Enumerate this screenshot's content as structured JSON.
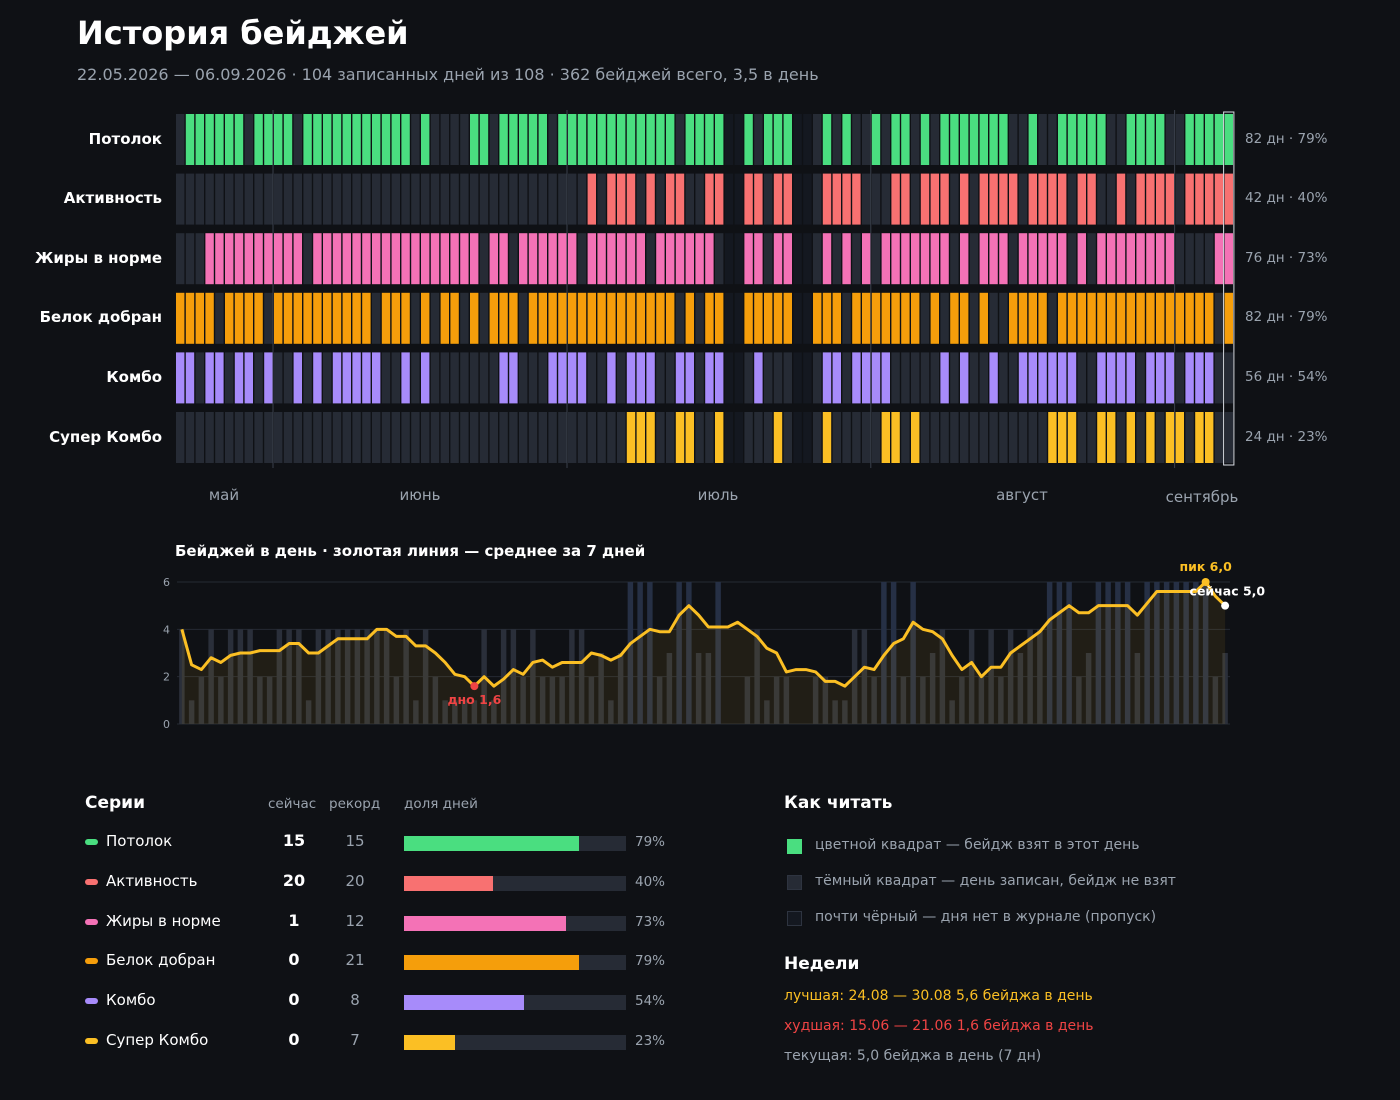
{
  "header": {
    "title": "История бейджей",
    "subtitle": "22.05.2026 — 06.09.2026 · 104 записанных дней из 108 · 362 бейджей всего, 3,5 в день"
  },
  "colors": {
    "background": "#0f1115",
    "empty_cell": "#262b35",
    "missing_cell": "#141820",
    "gold": "#fbbf24",
    "red": "#ef4444"
  },
  "heatmap": {
    "month_labels": [
      "май",
      "июнь",
      "июль",
      "август",
      "сентябрь"
    ],
    "rows": [
      {
        "name": "Потолок",
        "stat": "82 дн · 79%",
        "color": "#4ade80"
      },
      {
        "name": "Активность",
        "stat": "42 дн · 40%",
        "color": "#f87171"
      },
      {
        "name": "Жиры в норме",
        "stat": "76 дн · 73%",
        "color": "#f472b6"
      },
      {
        "name": "Белок добран",
        "stat": "82 дн · 79%",
        "color": "#f59e0b"
      },
      {
        "name": "Комбо",
        "stat": "56 дн · 54%",
        "color": "#a78bfa"
      },
      {
        "name": "Супер Комбо",
        "stat": "24 дн · 23%",
        "color": "#fbbf24"
      }
    ]
  },
  "chart_data": {
    "type": "bar",
    "title": "Бейджей в день · золотая линия — среднее за 7 дней",
    "x_start": "2026-05-22",
    "x_end": "2026-09-06",
    "ylim": [
      0,
      6
    ],
    "y_ticks": [
      0,
      2,
      4,
      6
    ],
    "grid": true,
    "missing_days": [
      "2026-07-17",
      "2026-07-18",
      "2026-07-24",
      "2026-07-25"
    ],
    "days": [
      {
        "date": "2026-05-22",
        "value": 4,
        "avg": 4.0
      },
      {
        "date": "2026-05-23",
        "value": 1,
        "avg": 2.5
      },
      {
        "date": "2026-05-24",
        "value": 2,
        "avg": 2.3
      },
      {
        "date": "2026-05-25",
        "value": 4,
        "avg": 2.8
      },
      {
        "date": "2026-05-26",
        "value": 2,
        "avg": 2.6
      },
      {
        "date": "2026-05-27",
        "value": 4,
        "avg": 2.9
      },
      {
        "date": "2026-05-28",
        "value": 4,
        "avg": 3.0
      },
      {
        "date": "2026-05-29",
        "value": 4,
        "avg": 3.0
      },
      {
        "date": "2026-05-30",
        "value": 2,
        "avg": 3.1
      },
      {
        "date": "2026-05-31",
        "value": 2,
        "avg": 3.1
      },
      {
        "date": "2026-06-01",
        "value": 4,
        "avg": 3.1
      },
      {
        "date": "2026-06-02",
        "value": 4,
        "avg": 3.4
      },
      {
        "date": "2026-06-03",
        "value": 4,
        "avg": 3.4
      },
      {
        "date": "2026-06-04",
        "value": 1,
        "avg": 3.0
      },
      {
        "date": "2026-06-05",
        "value": 4,
        "avg": 3.0
      },
      {
        "date": "2026-06-06",
        "value": 4,
        "avg": 3.3
      },
      {
        "date": "2026-06-07",
        "value": 4,
        "avg": 3.6
      },
      {
        "date": "2026-06-08",
        "value": 4,
        "avg": 3.6
      },
      {
        "date": "2026-06-09",
        "value": 4,
        "avg": 3.6
      },
      {
        "date": "2026-06-10",
        "value": 4,
        "avg": 3.6
      },
      {
        "date": "2026-06-11",
        "value": 4,
        "avg": 4.0
      },
      {
        "date": "2026-06-12",
        "value": 4,
        "avg": 4.0
      },
      {
        "date": "2026-06-13",
        "value": 2,
        "avg": 3.7
      },
      {
        "date": "2026-06-14",
        "value": 4,
        "avg": 3.7
      },
      {
        "date": "2026-06-15",
        "value": 1,
        "avg": 3.3
      },
      {
        "date": "2026-06-16",
        "value": 4,
        "avg": 3.3
      },
      {
        "date": "2026-06-17",
        "value": 2,
        "avg": 3.0
      },
      {
        "date": "2026-06-18",
        "value": 1,
        "avg": 2.6
      },
      {
        "date": "2026-06-19",
        "value": 1,
        "avg": 2.1
      },
      {
        "date": "2026-06-20",
        "value": 1,
        "avg": 2.0
      },
      {
        "date": "2026-06-21",
        "value": 1,
        "avg": 1.6
      },
      {
        "date": "2026-06-22",
        "value": 4,
        "avg": 2.0
      },
      {
        "date": "2026-06-23",
        "value": 1,
        "avg": 1.6
      },
      {
        "date": "2026-06-24",
        "value": 4,
        "avg": 1.9
      },
      {
        "date": "2026-06-25",
        "value": 4,
        "avg": 2.3
      },
      {
        "date": "2026-06-26",
        "value": 2,
        "avg": 2.1
      },
      {
        "date": "2026-06-27",
        "value": 4,
        "avg": 2.6
      },
      {
        "date": "2026-06-28",
        "value": 2,
        "avg": 2.7
      },
      {
        "date": "2026-06-29",
        "value": 2,
        "avg": 2.4
      },
      {
        "date": "2026-06-30",
        "value": 2,
        "avg": 2.6
      },
      {
        "date": "2026-07-01",
        "value": 4,
        "avg": 2.6
      },
      {
        "date": "2026-07-02",
        "value": 4,
        "avg": 2.6
      },
      {
        "date": "2026-07-03",
        "value": 2,
        "avg": 3.0
      },
      {
        "date": "2026-07-04",
        "value": 3,
        "avg": 2.9
      },
      {
        "date": "2026-07-05",
        "value": 1,
        "avg": 2.7
      },
      {
        "date": "2026-07-06",
        "value": 3,
        "avg": 2.9
      },
      {
        "date": "2026-07-07",
        "value": 6,
        "avg": 3.4
      },
      {
        "date": "2026-07-08",
        "value": 6,
        "avg": 3.7
      },
      {
        "date": "2026-07-09",
        "value": 6,
        "avg": 4.0
      },
      {
        "date": "2026-07-10",
        "value": 2,
        "avg": 3.9
      },
      {
        "date": "2026-07-11",
        "value": 3,
        "avg": 3.9
      },
      {
        "date": "2026-07-12",
        "value": 6,
        "avg": 4.6
      },
      {
        "date": "2026-07-13",
        "value": 6,
        "avg": 5.0
      },
      {
        "date": "2026-07-14",
        "value": 3,
        "avg": 4.6
      },
      {
        "date": "2026-07-15",
        "value": 3,
        "avg": 4.1
      },
      {
        "date": "2026-07-16",
        "value": 6,
        "avg": 4.1
      },
      {
        "date": "2026-07-17",
        "value": 0,
        "avg": 4.1
      },
      {
        "date": "2026-07-18",
        "value": 0,
        "avg": 4.3
      },
      {
        "date": "2026-07-19",
        "value": 2,
        "avg": 4.0
      },
      {
        "date": "2026-07-20",
        "value": 4,
        "avg": 3.7
      },
      {
        "date": "2026-07-21",
        "value": 1,
        "avg": 3.2
      },
      {
        "date": "2026-07-22",
        "value": 2,
        "avg": 3.0
      },
      {
        "date": "2026-07-23",
        "value": 2,
        "avg": 2.2
      },
      {
        "date": "2026-07-24",
        "value": 0,
        "avg": 2.3
      },
      {
        "date": "2026-07-25",
        "value": 0,
        "avg": 2.3
      },
      {
        "date": "2026-07-26",
        "value": 2,
        "avg": 2.2
      },
      {
        "date": "2026-07-27",
        "value": 2,
        "avg": 1.8
      },
      {
        "date": "2026-07-28",
        "value": 1,
        "avg": 1.8
      },
      {
        "date": "2026-07-29",
        "value": 1,
        "avg": 1.6
      },
      {
        "date": "2026-07-30",
        "value": 4,
        "avg": 2.0
      },
      {
        "date": "2026-07-31",
        "value": 4,
        "avg": 2.4
      },
      {
        "date": "2026-08-01",
        "value": 2,
        "avg": 2.3
      },
      {
        "date": "2026-08-02",
        "value": 6,
        "avg": 2.9
      },
      {
        "date": "2026-08-03",
        "value": 6,
        "avg": 3.4
      },
      {
        "date": "2026-08-04",
        "value": 2,
        "avg": 3.6
      },
      {
        "date": "2026-08-05",
        "value": 6,
        "avg": 4.3
      },
      {
        "date": "2026-08-06",
        "value": 2,
        "avg": 4.0
      },
      {
        "date": "2026-08-07",
        "value": 3,
        "avg": 3.9
      },
      {
        "date": "2026-08-08",
        "value": 4,
        "avg": 3.6
      },
      {
        "date": "2026-08-09",
        "value": 1,
        "avg": 2.9
      },
      {
        "date": "2026-08-10",
        "value": 2,
        "avg": 2.3
      },
      {
        "date": "2026-08-11",
        "value": 4,
        "avg": 2.6
      },
      {
        "date": "2026-08-12",
        "value": 2,
        "avg": 2.0
      },
      {
        "date": "2026-08-13",
        "value": 4,
        "avg": 2.4
      },
      {
        "date": "2026-08-14",
        "value": 2,
        "avg": 2.4
      },
      {
        "date": "2026-08-15",
        "value": 4,
        "avg": 3.0
      },
      {
        "date": "2026-08-16",
        "value": 3,
        "avg": 3.3
      },
      {
        "date": "2026-08-17",
        "value": 4,
        "avg": 3.6
      },
      {
        "date": "2026-08-18",
        "value": 4,
        "avg": 3.9
      },
      {
        "date": "2026-08-19",
        "value": 6,
        "avg": 4.4
      },
      {
        "date": "2026-08-20",
        "value": 6,
        "avg": 4.7
      },
      {
        "date": "2026-08-21",
        "value": 6,
        "avg": 5.0
      },
      {
        "date": "2026-08-22",
        "value": 2,
        "avg": 4.7
      },
      {
        "date": "2026-08-23",
        "value": 3,
        "avg": 4.7
      },
      {
        "date": "2026-08-24",
        "value": 6,
        "avg": 5.0
      },
      {
        "date": "2026-08-25",
        "value": 6,
        "avg": 5.0
      },
      {
        "date": "2026-08-26",
        "value": 6,
        "avg": 5.0
      },
      {
        "date": "2026-08-27",
        "value": 6,
        "avg": 5.0
      },
      {
        "date": "2026-08-28",
        "value": 3,
        "avg": 4.6
      },
      {
        "date": "2026-08-29",
        "value": 6,
        "avg": 5.1
      },
      {
        "date": "2026-08-30",
        "value": 6,
        "avg": 5.6
      },
      {
        "date": "2026-08-31",
        "value": 6,
        "avg": 5.6
      },
      {
        "date": "2026-09-01",
        "value": 6,
        "avg": 5.6
      },
      {
        "date": "2026-09-02",
        "value": 6,
        "avg": 5.6
      },
      {
        "date": "2026-09-03",
        "value": 6,
        "avg": 5.6
      },
      {
        "date": "2026-09-04",
        "value": 6,
        "avg": 6.0
      },
      {
        "date": "2026-09-05",
        "value": 2,
        "avg": 5.4
      },
      {
        "date": "2026-09-06",
        "value": 3,
        "avg": 5.0
      }
    ],
    "annotations": {
      "min": {
        "label": "дно 1,6",
        "date": "2026-06-21",
        "value": 1.6
      },
      "max": {
        "label": "пик 6,0",
        "date": "2026-09-04",
        "value": 6.0
      },
      "current": {
        "label": "сейчас 5,0",
        "date": "2026-09-06",
        "value": 5.0
      }
    }
  },
  "series_table": {
    "title": "Серии",
    "col_now": "сейчас",
    "col_record": "рекорд",
    "col_share": "доля дней",
    "rows": [
      {
        "name": "Потолок",
        "now": "15",
        "record": "15",
        "pct_label": "79%",
        "share": 0.79,
        "color": "#4ade80"
      },
      {
        "name": "Активность",
        "now": "20",
        "record": "20",
        "pct_label": "40%",
        "share": 0.4,
        "color": "#f87171"
      },
      {
        "name": "Жиры в норме",
        "now": "1",
        "record": "12",
        "pct_label": "73%",
        "share": 0.73,
        "color": "#f472b6"
      },
      {
        "name": "Белок добран",
        "now": "0",
        "record": "21",
        "pct_label": "79%",
        "share": 0.79,
        "color": "#f59e0b"
      },
      {
        "name": "Комбо",
        "now": "0",
        "record": "8",
        "pct_label": "54%",
        "share": 0.54,
        "color": "#a78bfa"
      },
      {
        "name": "Супер Комбо",
        "now": "0",
        "record": "7",
        "pct_label": "23%",
        "share": 0.23,
        "color": "#fbbf24"
      }
    ]
  },
  "legend": {
    "title": "Как читать",
    "items": [
      {
        "text": "цветной квадрат — бейдж взят в этот день",
        "color": "#4ade80"
      },
      {
        "text": "тёмный квадрат — день записан, бейдж не взят",
        "color": "#262b35"
      },
      {
        "text": "почти чёрный — дня нет в журнале (пропуск)",
        "color": "#141820"
      }
    ]
  },
  "weeks": {
    "title": "Недели",
    "best": "лучшая:  24.08 — 30.08   5,6 бейджа в день",
    "worst": "худшая:  15.06 — 21.06   1,6 бейджа в день",
    "current": "текущая: 5,0 бейджа в день (7 дн)"
  }
}
